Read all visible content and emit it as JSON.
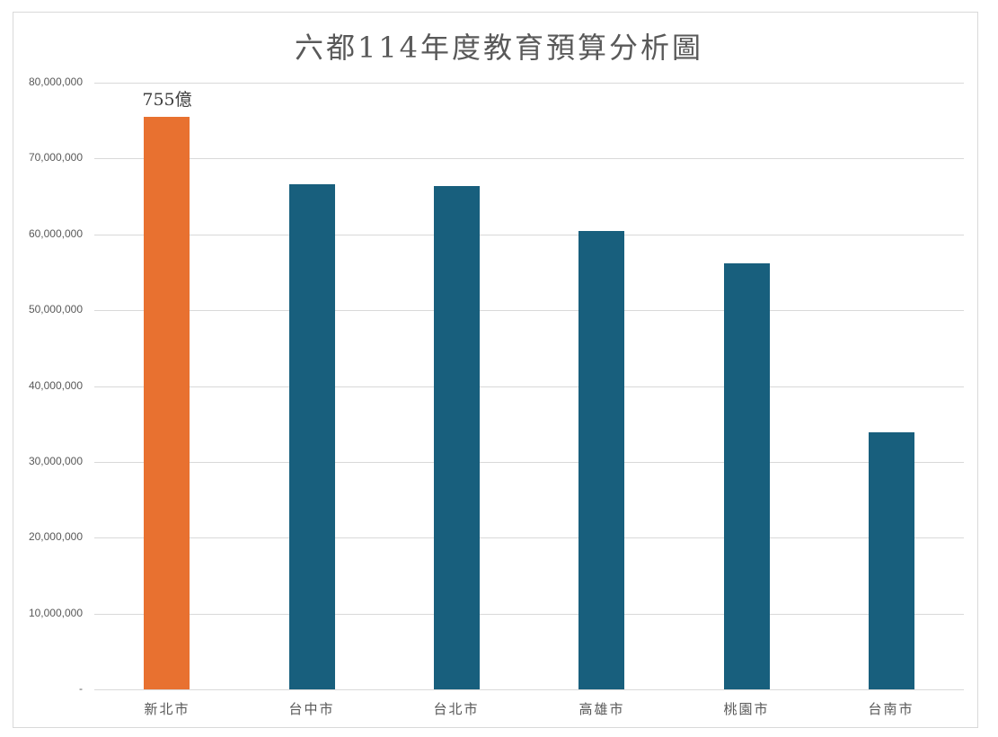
{
  "chart_data": {
    "type": "bar",
    "title": "六都114年度教育預算分析圖",
    "xlabel": "",
    "ylabel": "",
    "categories": [
      "新北市",
      "台中市",
      "台北市",
      "高雄市",
      "桃園市",
      "台南市"
    ],
    "values": [
      75500000,
      66600000,
      66400000,
      60400000,
      56200000,
      33900000
    ],
    "colors": [
      "#E87130",
      "#185F7D",
      "#185F7D",
      "#185F7D",
      "#185F7D",
      "#185F7D"
    ],
    "ylim": [
      0,
      80000000
    ],
    "yticks": [
      0,
      10000000,
      20000000,
      30000000,
      40000000,
      50000000,
      60000000,
      70000000,
      80000000
    ],
    "ytick_labels": [
      "-",
      "10,000,000",
      "20,000,000",
      "30,000,000",
      "40,000,000",
      "50,000,000",
      "60,000,000",
      "70,000,000",
      "80,000,000"
    ],
    "grid": true,
    "legend": "none",
    "annotations": [
      {
        "category": "新北市",
        "text": "755億"
      }
    ]
  },
  "title": "六都114年度教育預算分析圖",
  "annotation": "755億"
}
